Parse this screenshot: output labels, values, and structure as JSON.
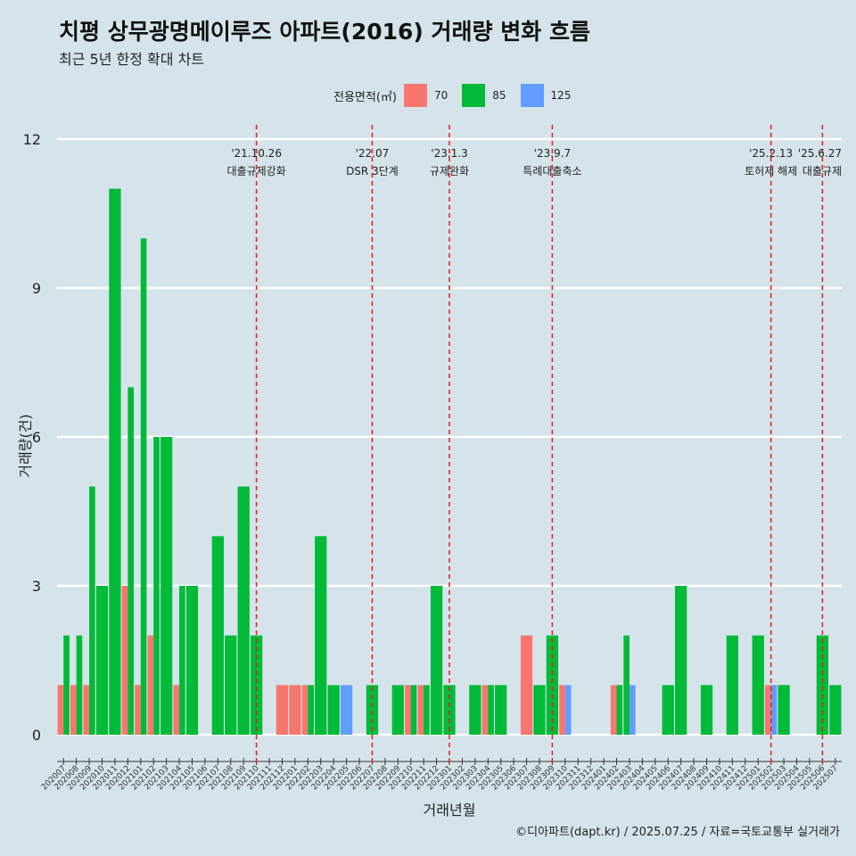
{
  "title": "치평 상무광명메이루즈 아파트(2016) 거래량 변화 흐름",
  "subtitle": "최근 5년 한정 확대 차트",
  "caption": "©디아파트(dapt.kr) / 2025.07.25 / 자료=국토교통부 실거래가",
  "colors": {
    "background": "#d5e4eb",
    "70": "#f8766d",
    "85": "#00ba38",
    "125": "#619cff",
    "event_line": "#e8231e"
  },
  "chart_data": {
    "type": "bar",
    "title": "치평 상무광명메이루즈 아파트(2016) 거래량 변화 흐름",
    "subtitle": "최근 5년 한정 확대 차트",
    "xlabel": "거래년월",
    "ylabel": "거래량(건)",
    "ylim": [
      0,
      12
    ],
    "yticks": [
      0,
      3,
      6,
      9,
      12
    ],
    "grid": true,
    "legend": {
      "title": "전용면적(㎡)",
      "position": "top",
      "entries": [
        "70",
        "85",
        "125"
      ]
    },
    "categories": [
      "202007",
      "202008",
      "202009",
      "202010",
      "202011",
      "202012",
      "202101",
      "202102",
      "202103",
      "202104",
      "202105",
      "202106",
      "202107",
      "202108",
      "202109",
      "202110",
      "202111",
      "202112",
      "202201",
      "202202",
      "202203",
      "202204",
      "202205",
      "202206",
      "202207",
      "202208",
      "202209",
      "202210",
      "202211",
      "202212",
      "202301",
      "202302",
      "202303",
      "202304",
      "202305",
      "202306",
      "202307",
      "202308",
      "202309",
      "202310",
      "202311",
      "202312",
      "202401",
      "202402",
      "202403",
      "202404",
      "202405",
      "202406",
      "202407",
      "202408",
      "202409",
      "202410",
      "202411",
      "202412",
      "202501",
      "202502",
      "202503",
      "202504",
      "202505",
      "202506",
      "202507"
    ],
    "series": [
      {
        "name": "70",
        "values": [
          1,
          1,
          1,
          0,
          0,
          3,
          1,
          2,
          0,
          1,
          0,
          0,
          0,
          0,
          0,
          0,
          0,
          1,
          1,
          1,
          0,
          0,
          0,
          0,
          0,
          0,
          0,
          1,
          1,
          0,
          0,
          0,
          0,
          1,
          0,
          0,
          2,
          0,
          0,
          1,
          0,
          0,
          0,
          1,
          0,
          0,
          0,
          0,
          0,
          0,
          0,
          0,
          0,
          0,
          0,
          1,
          0,
          0,
          0,
          0,
          0
        ]
      },
      {
        "name": "85",
        "values": [
          2,
          2,
          5,
          3,
          11,
          7,
          10,
          6,
          6,
          3,
          3,
          0,
          4,
          2,
          5,
          2,
          0,
          0,
          0,
          1,
          4,
          1,
          0,
          0,
          1,
          0,
          1,
          1,
          1,
          3,
          1,
          0,
          1,
          1,
          1,
          0,
          0,
          1,
          2,
          0,
          0,
          0,
          0,
          1,
          2,
          0,
          0,
          1,
          3,
          0,
          1,
          0,
          2,
          0,
          2,
          0,
          1,
          0,
          0,
          2,
          1
        ]
      },
      {
        "name": "125",
        "values": [
          0,
          0,
          0,
          0,
          0,
          0,
          0,
          0,
          0,
          0,
          0,
          0,
          0,
          0,
          0,
          0,
          0,
          0,
          0,
          0,
          0,
          0,
          1,
          0,
          0,
          0,
          0,
          0,
          0,
          0,
          0,
          0,
          0,
          0,
          0,
          0,
          0,
          0,
          0,
          1,
          0,
          0,
          0,
          0,
          1,
          0,
          0,
          0,
          0,
          0,
          0,
          0,
          0,
          0,
          0,
          1,
          0,
          0,
          0,
          0,
          0
        ]
      }
    ],
    "annotations": [
      {
        "at": "202110",
        "date": "'21.10.26",
        "text": "대출규제강화"
      },
      {
        "at": "202207",
        "date": "'22.07",
        "text": "DSR 3단계"
      },
      {
        "at": "202301",
        "date": "'23.1.3",
        "text": "규제완화"
      },
      {
        "at": "202309",
        "date": "'23.9.7",
        "text": "특례대출축소"
      },
      {
        "at": "202502",
        "date": "'25.2.13",
        "text": "토허제 해제"
      },
      {
        "at": "202506",
        "date": "'25.6.27",
        "text": "대출규제"
      }
    ]
  }
}
